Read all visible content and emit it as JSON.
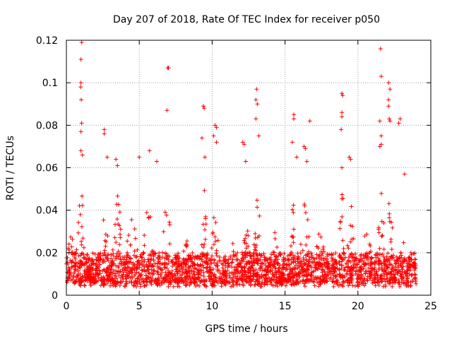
{
  "chart_data": {
    "type": "scatter",
    "title": "Day 207 of 2018, Rate Of TEC Index for receiver p050",
    "xlabel": "GPS time / hours",
    "ylabel": "ROTI / TECUs",
    "xlim": [
      0,
      25
    ],
    "ylim": [
      0,
      0.12
    ],
    "xticks": [
      0,
      5,
      10,
      15,
      20,
      25
    ],
    "xtick_labels": [
      "0",
      "5",
      "10",
      "15",
      "20",
      "25"
    ],
    "yticks": [
      0,
      0.02,
      0.04,
      0.06,
      0.08,
      0.1,
      0.12
    ],
    "ytick_labels": [
      "0",
      "0.02",
      "0.04",
      "0.06",
      "0.08",
      "0.1",
      "0.12"
    ],
    "grid": true,
    "marker": "+",
    "marker_color": "#ff0000",
    "series": [
      {
        "name": "ROTI",
        "data_range_hours": [
          0,
          24
        ],
        "baseline_band": [
          0.004,
          0.02
        ],
        "outliers": [
          [
            1.05,
            0.119
          ],
          [
            1.0,
            0.111
          ],
          [
            1.0,
            0.1
          ],
          [
            0.98,
            0.098
          ],
          [
            1.02,
            0.092
          ],
          [
            1.05,
            0.081
          ],
          [
            1.0,
            0.077
          ],
          [
            1.0,
            0.068
          ],
          [
            1.1,
            0.066
          ],
          [
            2.6,
            0.078
          ],
          [
            2.6,
            0.076
          ],
          [
            2.8,
            0.065
          ],
          [
            3.4,
            0.064
          ],
          [
            3.5,
            0.061
          ],
          [
            5.0,
            0.065
          ],
          [
            5.7,
            0.068
          ],
          [
            6.2,
            0.063
          ],
          [
            6.95,
            0.107
          ],
          [
            7.0,
            0.107
          ],
          [
            6.9,
            0.087
          ],
          [
            9.4,
            0.089
          ],
          [
            9.45,
            0.088
          ],
          [
            9.3,
            0.074
          ],
          [
            9.5,
            0.065
          ],
          [
            10.2,
            0.08
          ],
          [
            10.3,
            0.079
          ],
          [
            10.1,
            0.075
          ],
          [
            10.3,
            0.072
          ],
          [
            12.1,
            0.072
          ],
          [
            12.2,
            0.071
          ],
          [
            12.3,
            0.063
          ],
          [
            13.05,
            0.097
          ],
          [
            13.0,
            0.092
          ],
          [
            13.1,
            0.09
          ],
          [
            13.0,
            0.083
          ],
          [
            13.2,
            0.075
          ],
          [
            15.6,
            0.085
          ],
          [
            15.6,
            0.083
          ],
          [
            15.5,
            0.072
          ],
          [
            15.8,
            0.065
          ],
          [
            16.3,
            0.07
          ],
          [
            16.4,
            0.069
          ],
          [
            16.5,
            0.063
          ],
          [
            16.7,
            0.082
          ],
          [
            18.9,
            0.095
          ],
          [
            18.95,
            0.094
          ],
          [
            18.9,
            0.086
          ],
          [
            18.9,
            0.084
          ],
          [
            18.85,
            0.078
          ],
          [
            18.9,
            0.06
          ],
          [
            19.4,
            0.065
          ],
          [
            19.5,
            0.064
          ],
          [
            21.55,
            0.116
          ],
          [
            21.6,
            0.103
          ],
          [
            21.5,
            0.082
          ],
          [
            21.6,
            0.075
          ],
          [
            21.6,
            0.071
          ],
          [
            21.5,
            0.07
          ],
          [
            22.1,
            0.1
          ],
          [
            22.2,
            0.097
          ],
          [
            22.1,
            0.092
          ],
          [
            22.1,
            0.089
          ],
          [
            22.15,
            0.083
          ],
          [
            22.2,
            0.082
          ],
          [
            22.9,
            0.083
          ],
          [
            22.8,
            0.081
          ],
          [
            23.2,
            0.057
          ]
        ]
      }
    ]
  }
}
